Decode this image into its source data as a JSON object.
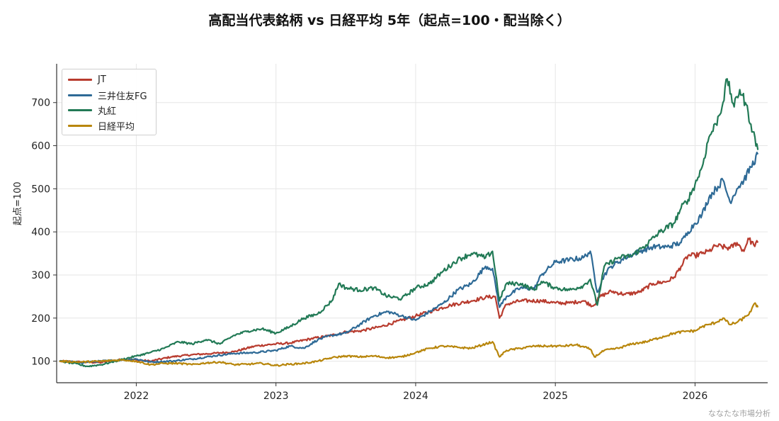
{
  "chart_data": {
    "type": "line",
    "title": "高配当代表銘柄 vs 日経平均 5年（起点=100・配当除く）",
    "xlabel": "",
    "ylabel": "起点=100",
    "xlim": [
      2021.43,
      2026.52
    ],
    "ylim": [
      50,
      790
    ],
    "xticks": [
      2022,
      2023,
      2024,
      2025,
      2026
    ],
    "yticks": [
      100,
      200,
      300,
      400,
      500,
      600,
      700
    ],
    "grid": true,
    "legend_position": "upper-left",
    "watermark": "ななたな市場分析",
    "series": [
      {
        "name": "JT",
        "color": "#b83b2e",
        "points": [
          [
            2021.45,
            100
          ],
          [
            2021.6,
            98
          ],
          [
            2021.75,
            97
          ],
          [
            2021.9,
            104
          ],
          [
            2022.0,
            103
          ],
          [
            2022.1,
            100
          ],
          [
            2022.25,
            110
          ],
          [
            2022.4,
            115
          ],
          [
            2022.55,
            118
          ],
          [
            2022.7,
            122
          ],
          [
            2022.85,
            135
          ],
          [
            2023.0,
            140
          ],
          [
            2023.1,
            142
          ],
          [
            2023.25,
            152
          ],
          [
            2023.4,
            160
          ],
          [
            2023.5,
            168
          ],
          [
            2023.6,
            170
          ],
          [
            2023.75,
            180
          ],
          [
            2023.9,
            195
          ],
          [
            2024.0,
            205
          ],
          [
            2024.1,
            215
          ],
          [
            2024.25,
            230
          ],
          [
            2024.4,
            240
          ],
          [
            2024.5,
            248
          ],
          [
            2024.57,
            250
          ],
          [
            2024.6,
            200
          ],
          [
            2024.65,
            232
          ],
          [
            2024.75,
            240
          ],
          [
            2024.9,
            240
          ],
          [
            2025.0,
            235
          ],
          [
            2025.1,
            235
          ],
          [
            2025.2,
            240
          ],
          [
            2025.27,
            228
          ],
          [
            2025.32,
            250
          ],
          [
            2025.4,
            262
          ],
          [
            2025.5,
            255
          ],
          [
            2025.6,
            260
          ],
          [
            2025.7,
            280
          ],
          [
            2025.8,
            285
          ],
          [
            2025.85,
            295
          ],
          [
            2025.9,
            320
          ],
          [
            2025.95,
            345
          ],
          [
            2026.0,
            345
          ],
          [
            2026.05,
            350
          ],
          [
            2026.1,
            355
          ],
          [
            2026.15,
            368
          ],
          [
            2026.25,
            362
          ],
          [
            2026.3,
            375
          ],
          [
            2026.35,
            355
          ],
          [
            2026.38,
            385
          ],
          [
            2026.42,
            370
          ],
          [
            2026.45,
            375
          ]
        ]
      },
      {
        "name": "三井住友FG",
        "color": "#2e6a96",
        "points": [
          [
            2021.45,
            100
          ],
          [
            2021.6,
            97
          ],
          [
            2021.75,
            100
          ],
          [
            2021.9,
            103
          ],
          [
            2022.0,
            105
          ],
          [
            2022.1,
            98
          ],
          [
            2022.25,
            100
          ],
          [
            2022.4,
            105
          ],
          [
            2022.55,
            112
          ],
          [
            2022.7,
            118
          ],
          [
            2022.85,
            120
          ],
          [
            2023.0,
            125
          ],
          [
            2023.1,
            135
          ],
          [
            2023.2,
            130
          ],
          [
            2023.3,
            150
          ],
          [
            2023.4,
            160
          ],
          [
            2023.5,
            165
          ],
          [
            2023.6,
            185
          ],
          [
            2023.7,
            205
          ],
          [
            2023.8,
            215
          ],
          [
            2023.9,
            205
          ],
          [
            2024.0,
            195
          ],
          [
            2024.1,
            215
          ],
          [
            2024.2,
            235
          ],
          [
            2024.3,
            265
          ],
          [
            2024.4,
            280
          ],
          [
            2024.5,
            320
          ],
          [
            2024.55,
            315
          ],
          [
            2024.6,
            225
          ],
          [
            2024.65,
            250
          ],
          [
            2024.75,
            270
          ],
          [
            2024.85,
            268
          ],
          [
            2024.9,
            300
          ],
          [
            2025.0,
            330
          ],
          [
            2025.1,
            335
          ],
          [
            2025.2,
            340
          ],
          [
            2025.25,
            355
          ],
          [
            2025.3,
            260
          ],
          [
            2025.35,
            300
          ],
          [
            2025.4,
            320
          ],
          [
            2025.5,
            340
          ],
          [
            2025.6,
            355
          ],
          [
            2025.7,
            365
          ],
          [
            2025.8,
            365
          ],
          [
            2025.9,
            375
          ],
          [
            2025.95,
            400
          ],
          [
            2026.0,
            420
          ],
          [
            2026.05,
            440
          ],
          [
            2026.1,
            480
          ],
          [
            2026.15,
            500
          ],
          [
            2026.2,
            520
          ],
          [
            2026.25,
            470
          ],
          [
            2026.3,
            500
          ],
          [
            2026.35,
            520
          ],
          [
            2026.4,
            550
          ],
          [
            2026.45,
            580
          ]
        ]
      },
      {
        "name": "丸紅",
        "color": "#227a56",
        "points": [
          [
            2021.45,
            100
          ],
          [
            2021.55,
            95
          ],
          [
            2021.65,
            88
          ],
          [
            2021.75,
            92
          ],
          [
            2021.85,
            100
          ],
          [
            2022.0,
            112
          ],
          [
            2022.1,
            120
          ],
          [
            2022.2,
            130
          ],
          [
            2022.3,
            145
          ],
          [
            2022.4,
            140
          ],
          [
            2022.5,
            150
          ],
          [
            2022.6,
            140
          ],
          [
            2022.7,
            160
          ],
          [
            2022.8,
            170
          ],
          [
            2022.9,
            175
          ],
          [
            2023.0,
            165
          ],
          [
            2023.1,
            180
          ],
          [
            2023.2,
            200
          ],
          [
            2023.3,
            210
          ],
          [
            2023.4,
            240
          ],
          [
            2023.45,
            280
          ],
          [
            2023.5,
            270
          ],
          [
            2023.6,
            265
          ],
          [
            2023.7,
            270
          ],
          [
            2023.8,
            250
          ],
          [
            2023.9,
            245
          ],
          [
            2024.0,
            270
          ],
          [
            2024.1,
            280
          ],
          [
            2024.2,
            310
          ],
          [
            2024.3,
            335
          ],
          [
            2024.4,
            350
          ],
          [
            2024.5,
            340
          ],
          [
            2024.55,
            355
          ],
          [
            2024.6,
            240
          ],
          [
            2024.65,
            280
          ],
          [
            2024.75,
            280
          ],
          [
            2024.85,
            265
          ],
          [
            2024.9,
            285
          ],
          [
            2025.0,
            270
          ],
          [
            2025.1,
            265
          ],
          [
            2025.2,
            275
          ],
          [
            2025.25,
            290
          ],
          [
            2025.3,
            230
          ],
          [
            2025.35,
            320
          ],
          [
            2025.45,
            340
          ],
          [
            2025.55,
            345
          ],
          [
            2025.65,
            370
          ],
          [
            2025.75,
            400
          ],
          [
            2025.85,
            420
          ],
          [
            2025.9,
            455
          ],
          [
            2025.95,
            475
          ],
          [
            2026.0,
            510
          ],
          [
            2026.05,
            550
          ],
          [
            2026.1,
            620
          ],
          [
            2026.15,
            650
          ],
          [
            2026.2,
            700
          ],
          [
            2026.23,
            755
          ],
          [
            2026.28,
            690
          ],
          [
            2026.32,
            730
          ],
          [
            2026.36,
            700
          ],
          [
            2026.4,
            650
          ],
          [
            2026.45,
            590
          ]
        ]
      },
      {
        "name": "日経平均",
        "color": "#b8860b",
        "points": [
          [
            2021.45,
            100
          ],
          [
            2021.6,
            98
          ],
          [
            2021.75,
            100
          ],
          [
            2021.9,
            103
          ],
          [
            2022.0,
            100
          ],
          [
            2022.1,
            92
          ],
          [
            2022.2,
            95
          ],
          [
            2022.3,
            95
          ],
          [
            2022.4,
            92
          ],
          [
            2022.5,
            96
          ],
          [
            2022.6,
            98
          ],
          [
            2022.7,
            92
          ],
          [
            2022.8,
            93
          ],
          [
            2022.9,
            95
          ],
          [
            2023.0,
            90
          ],
          [
            2023.1,
            93
          ],
          [
            2023.2,
            95
          ],
          [
            2023.3,
            100
          ],
          [
            2023.4,
            108
          ],
          [
            2023.5,
            112
          ],
          [
            2023.6,
            110
          ],
          [
            2023.7,
            112
          ],
          [
            2023.8,
            108
          ],
          [
            2023.9,
            110
          ],
          [
            2024.0,
            120
          ],
          [
            2024.1,
            130
          ],
          [
            2024.2,
            135
          ],
          [
            2024.3,
            132
          ],
          [
            2024.4,
            130
          ],
          [
            2024.5,
            140
          ],
          [
            2024.55,
            145
          ],
          [
            2024.6,
            110
          ],
          [
            2024.65,
            125
          ],
          [
            2024.75,
            130
          ],
          [
            2024.85,
            135
          ],
          [
            2024.95,
            135
          ],
          [
            2025.05,
            135
          ],
          [
            2025.15,
            138
          ],
          [
            2025.25,
            128
          ],
          [
            2025.28,
            110
          ],
          [
            2025.35,
            125
          ],
          [
            2025.45,
            130
          ],
          [
            2025.55,
            140
          ],
          [
            2025.65,
            145
          ],
          [
            2025.75,
            155
          ],
          [
            2025.85,
            165
          ],
          [
            2025.95,
            170
          ],
          [
            2026.0,
            170
          ],
          [
            2026.05,
            180
          ],
          [
            2026.1,
            185
          ],
          [
            2026.15,
            190
          ],
          [
            2026.2,
            200
          ],
          [
            2026.25,
            185
          ],
          [
            2026.3,
            190
          ],
          [
            2026.35,
            200
          ],
          [
            2026.4,
            215
          ],
          [
            2026.43,
            235
          ],
          [
            2026.45,
            225
          ]
        ]
      }
    ]
  }
}
